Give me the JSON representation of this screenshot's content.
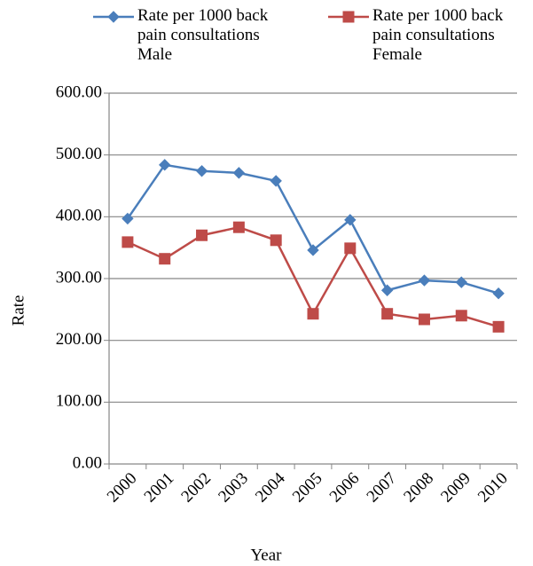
{
  "chart_data": {
    "type": "line",
    "categories": [
      "2000",
      "2001",
      "2002",
      "2003",
      "2004",
      "2005",
      "2006",
      "2007",
      "2008",
      "2009",
      "2010"
    ],
    "series": [
      {
        "name": "Rate per 1000 back pain consultations Male",
        "color": "#4a7ebb",
        "marker": "diamond",
        "values": [
          397,
          484,
          474,
          471,
          458,
          346,
          395,
          281,
          297,
          294,
          276
        ]
      },
      {
        "name": "Rate per 1000 back pain consultations Female",
        "color": "#be4b48",
        "marker": "square",
        "values": [
          359,
          332,
          370,
          383,
          362,
          243,
          349,
          243,
          234,
          240,
          222
        ]
      }
    ],
    "ylim": [
      0,
      600
    ],
    "yticks": [
      {
        "value": 0,
        "label": "0.00"
      },
      {
        "value": 100,
        "label": "100.00"
      },
      {
        "value": 200,
        "label": "200.00"
      },
      {
        "value": 300,
        "label": "300.00"
      },
      {
        "value": 400,
        "label": "400.00"
      },
      {
        "value": 500,
        "label": "500.00"
      },
      {
        "value": 600,
        "label": "600.00"
      }
    ],
    "xlabel": "Year",
    "ylabel": "Rate",
    "grid": true,
    "legend": "top"
  }
}
